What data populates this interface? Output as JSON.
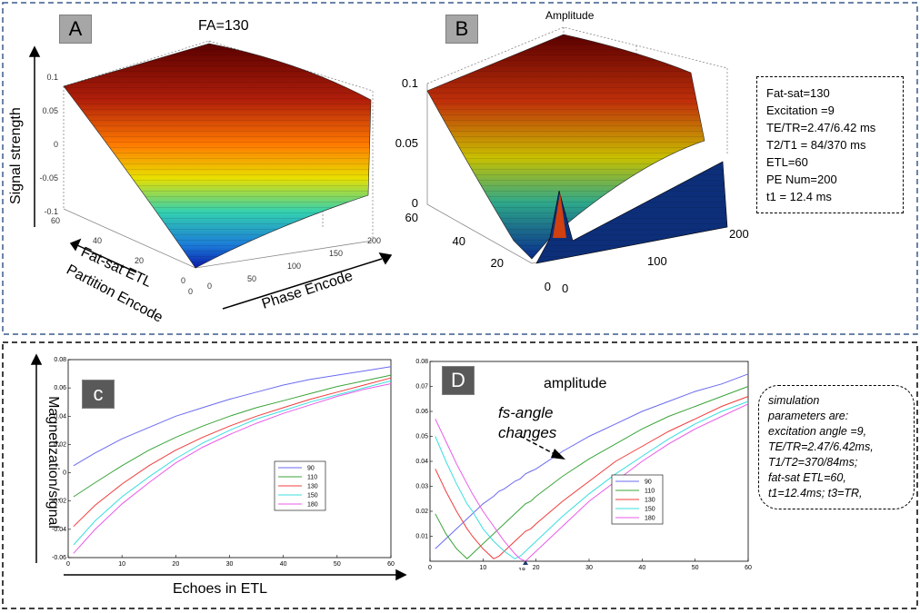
{
  "panel_a": {
    "badge": "A",
    "title": "FA=130",
    "z_label": "Signal strength",
    "axis1_label": "Fat-sat ETL",
    "axis2_label": "Partition Encode",
    "axis3_label": "Phase Encode",
    "z_ticks": [
      "0.1",
      "0.05",
      "0",
      "-0.05",
      "-0.1"
    ],
    "pe_ticks": [
      "0",
      "50",
      "100",
      "150",
      "200"
    ],
    "etl_ticks": [
      "60",
      "40",
      "20",
      "0"
    ],
    "part_ticks": [
      "0"
    ]
  },
  "panel_b": {
    "badge": "B",
    "title": "Amplitude",
    "z_ticks": [
      "0.1",
      "0.05",
      "0"
    ],
    "pe_ticks": [
      "0",
      "100",
      "200"
    ],
    "etl_ticks": [
      "60",
      "40",
      "20",
      "0"
    ],
    "params": [
      "Fat-sat=130",
      "Excitation =9",
      "TE/TR=2.47/6.42 ms",
      "T2/T1 = 84/370 ms",
      "ETL=60",
      "PE Num=200",
      "t1 = 12.4 ms"
    ]
  },
  "panel_c": {
    "badge": "c",
    "ylabel": "Magnetization/signal",
    "xlabel": "Echoes in ETL"
  },
  "panel_d": {
    "badge": "D",
    "title": "amplitude",
    "annotation_1": "fs-angle",
    "annotation_2": "changes",
    "marker_label": "18",
    "sim_params": [
      "simulation",
      "parameters are:",
      "excitation angle =9,",
      "TE/TR=2.47/6.42ms,",
      "T1/T2=370/84ms;",
      "fat-sat ETL=60,",
      "t1=12.4ms; t3=TR,"
    ]
  },
  "chart_data": [
    {
      "type": "line",
      "id": "C",
      "x": [
        1,
        5,
        10,
        15,
        20,
        25,
        30,
        35,
        40,
        45,
        50,
        55,
        60
      ],
      "xlim": [
        0,
        60
      ],
      "ylim": [
        -0.06,
        0.08
      ],
      "xticks": [
        0,
        10,
        20,
        30,
        40,
        50,
        60
      ],
      "yticks": [
        -0.06,
        -0.04,
        -0.02,
        0,
        0.02,
        0.04,
        0.06,
        0.08
      ],
      "xlabel": "Echoes in ETL",
      "ylabel": "Magnetization/signal",
      "legend_position": "center-right",
      "series": [
        {
          "name": "90",
          "color": "#6b6bf0",
          "values": [
            0.005,
            0.014,
            0.024,
            0.032,
            0.04,
            0.046,
            0.052,
            0.057,
            0.062,
            0.066,
            0.069,
            0.072,
            0.075
          ]
        },
        {
          "name": "110",
          "color": "#3aa43a",
          "values": [
            -0.017,
            -0.007,
            0.005,
            0.016,
            0.025,
            0.033,
            0.04,
            0.046,
            0.051,
            0.056,
            0.061,
            0.065,
            0.069
          ]
        },
        {
          "name": "130",
          "color": "#f03c3c",
          "values": [
            -0.038,
            -0.023,
            -0.008,
            0.005,
            0.016,
            0.025,
            0.033,
            0.04,
            0.046,
            0.052,
            0.057,
            0.062,
            0.067
          ]
        },
        {
          "name": "150",
          "color": "#3cdede",
          "values": [
            -0.051,
            -0.034,
            -0.017,
            -0.003,
            0.01,
            0.021,
            0.03,
            0.038,
            0.044,
            0.05,
            0.055,
            0.06,
            0.065
          ]
        },
        {
          "name": "180",
          "color": "#e95be9",
          "values": [
            -0.057,
            -0.04,
            -0.022,
            -0.007,
            0.007,
            0.018,
            0.027,
            0.035,
            0.042,
            0.048,
            0.054,
            0.059,
            0.063
          ]
        }
      ]
    },
    {
      "type": "line",
      "id": "D",
      "title": "amplitude",
      "x": [
        1,
        3,
        5,
        7,
        8,
        10,
        12,
        13,
        14,
        16,
        17,
        18,
        19,
        20,
        25,
        30,
        35,
        40,
        45,
        50,
        55,
        60
      ],
      "xlim": [
        0,
        60
      ],
      "ylim": [
        0,
        0.08
      ],
      "xticks": [
        0,
        10,
        20,
        30,
        40,
        50,
        60
      ],
      "yticks": [
        0.01,
        0.02,
        0.03,
        0.04,
        0.05,
        0.06,
        0.07,
        0.08
      ],
      "legend_position": "center-right",
      "series": [
        {
          "name": "90",
          "color": "#6b6bf0",
          "values": [
            0.005,
            0.009,
            0.013,
            0.017,
            0.019,
            0.023,
            0.026,
            0.028,
            0.029,
            0.032,
            0.033,
            0.035,
            0.036,
            0.037,
            0.044,
            0.05,
            0.055,
            0.06,
            0.064,
            0.068,
            0.071,
            0.075
          ]
        },
        {
          "name": "110",
          "color": "#3aa43a",
          "values": [
            0.019,
            0.011,
            0.005,
            0.001,
            0.003,
            0.007,
            0.011,
            0.013,
            0.015,
            0.019,
            0.021,
            0.023,
            0.024,
            0.026,
            0.034,
            0.041,
            0.047,
            0.053,
            0.058,
            0.062,
            0.066,
            0.07
          ]
        },
        {
          "name": "130",
          "color": "#f03c3c",
          "values": [
            0.037,
            0.028,
            0.02,
            0.013,
            0.01,
            0.005,
            0.001,
            0.002,
            0.004,
            0.008,
            0.01,
            0.012,
            0.013,
            0.015,
            0.024,
            0.032,
            0.04,
            0.046,
            0.052,
            0.057,
            0.062,
            0.066
          ]
        },
        {
          "name": "150",
          "color": "#3cdede",
          "values": [
            0.05,
            0.04,
            0.031,
            0.023,
            0.02,
            0.013,
            0.008,
            0.006,
            0.004,
            0.001,
            0.002,
            0.004,
            0.006,
            0.008,
            0.018,
            0.027,
            0.035,
            0.042,
            0.049,
            0.055,
            0.06,
            0.064
          ]
        },
        {
          "name": "180",
          "color": "#e95be9",
          "values": [
            0.057,
            0.048,
            0.039,
            0.031,
            0.027,
            0.02,
            0.014,
            0.011,
            0.008,
            0.003,
            0.001,
            0.0,
            0.002,
            0.004,
            0.014,
            0.024,
            0.032,
            0.04,
            0.047,
            0.053,
            0.058,
            0.063
          ]
        }
      ]
    }
  ]
}
